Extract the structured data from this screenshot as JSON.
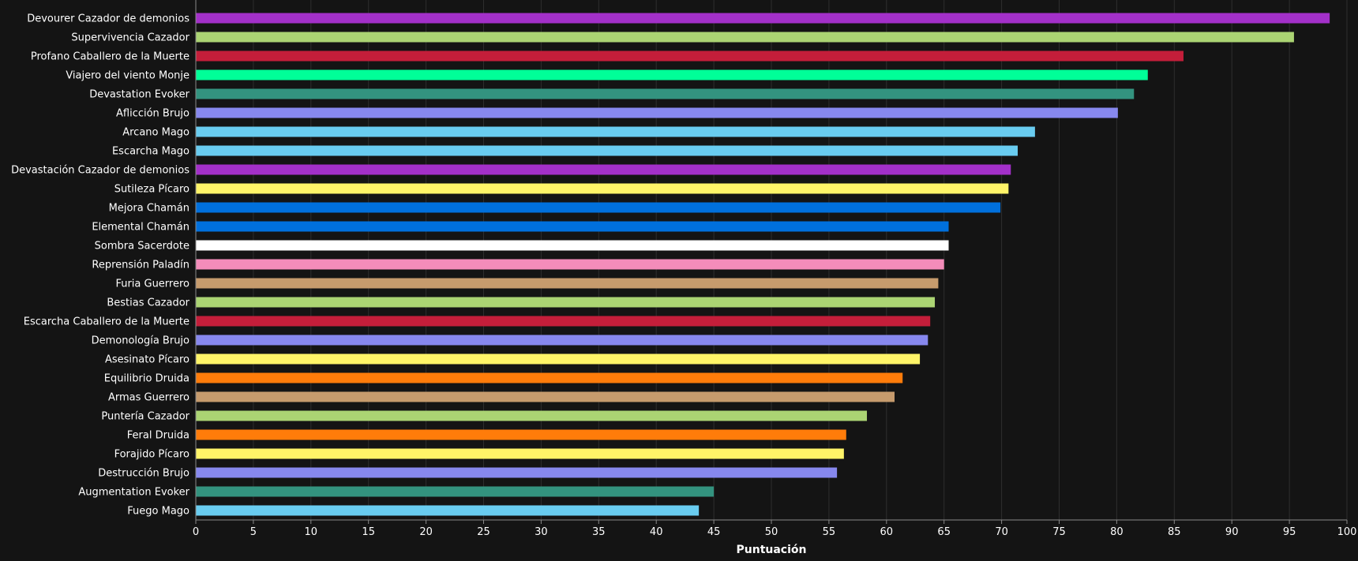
{
  "chart_data": {
    "type": "bar",
    "orientation": "horizontal",
    "title": "",
    "xlabel": "Puntuación",
    "ylabel": "",
    "xlim": [
      0,
      100
    ],
    "xticks": [
      0,
      5,
      10,
      15,
      20,
      25,
      30,
      35,
      40,
      45,
      50,
      55,
      60,
      65,
      70,
      75,
      80,
      85,
      90,
      95,
      100
    ],
    "grid": true,
    "categories": [
      "Devourer Cazador de demonios",
      "Supervivencia Cazador",
      "Profano Caballero de la Muerte",
      "Viajero del viento Monje",
      "Devastation Evoker",
      "Aflicción Brujo",
      "Arcano Mago",
      "Escarcha Mago",
      "Devastación Cazador de demonios",
      "Sutileza Pícaro",
      "Mejora Chamán",
      "Elemental Chamán",
      "Sombra Sacerdote",
      "Reprensión Paladín",
      "Furia Guerrero",
      "Bestias Cazador",
      "Escarcha Caballero de la Muerte",
      "Demonología Brujo",
      "Asesinato Pícaro",
      "Equilibrio Druida",
      "Armas Guerrero",
      "Puntería Cazador",
      "Feral Druida",
      "Forajido Pícaro",
      "Destrucción Brujo",
      "Augmentation Evoker",
      "Fuego Mago"
    ],
    "values": [
      98.5,
      95.4,
      85.8,
      82.7,
      81.5,
      80.1,
      72.9,
      71.4,
      70.8,
      70.6,
      69.9,
      65.4,
      65.4,
      65.0,
      64.5,
      64.2,
      63.8,
      63.6,
      62.9,
      61.4,
      60.7,
      58.3,
      56.5,
      56.3,
      55.7,
      45.0,
      43.7
    ],
    "colors": [
      "#a330c9",
      "#abd473",
      "#c41e3a",
      "#00ff98",
      "#33937f",
      "#8788ee",
      "#69ccf0",
      "#69ccf0",
      "#a330c9",
      "#fff468",
      "#0070dd",
      "#0070dd",
      "#ffffff",
      "#f48cba",
      "#c69b6d",
      "#abd473",
      "#c41e3a",
      "#8788ee",
      "#fff468",
      "#ff7c0a",
      "#c69b6d",
      "#abd473",
      "#ff7c0a",
      "#fff468",
      "#8788ee",
      "#33937f",
      "#69ccf0"
    ]
  }
}
